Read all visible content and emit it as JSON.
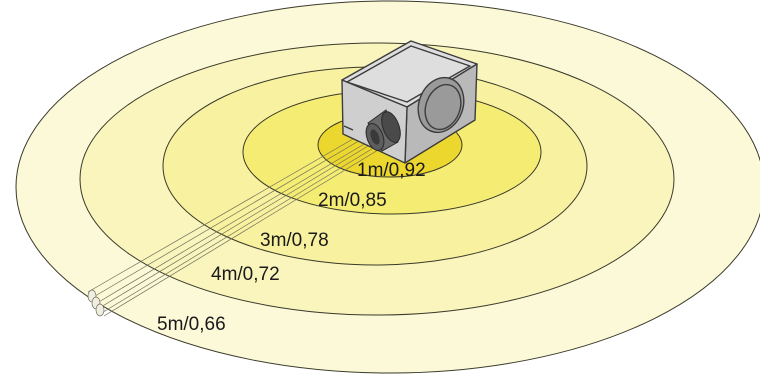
{
  "diagram": {
    "rings": [
      {
        "label": "1m/0,92",
        "fill": "#ecd72f"
      },
      {
        "label": "2m/0,85",
        "fill": "#f5ec74"
      },
      {
        "label": "3m/0,78",
        "fill": "#f8f19f"
      },
      {
        "label": "4m/0,72",
        "fill": "#faf5bd"
      },
      {
        "label": "5m/0,66",
        "fill": "#fcf9d8"
      }
    ],
    "box": {
      "front": "#cfcfcf",
      "side": "#b9b9b9",
      "top": "#dedede",
      "outline": "#3c3c3c",
      "hole": "#9a9a9a"
    },
    "pipe": {
      "color": "#5a5a5a"
    },
    "ring_stroke": "#3a3a2a"
  }
}
